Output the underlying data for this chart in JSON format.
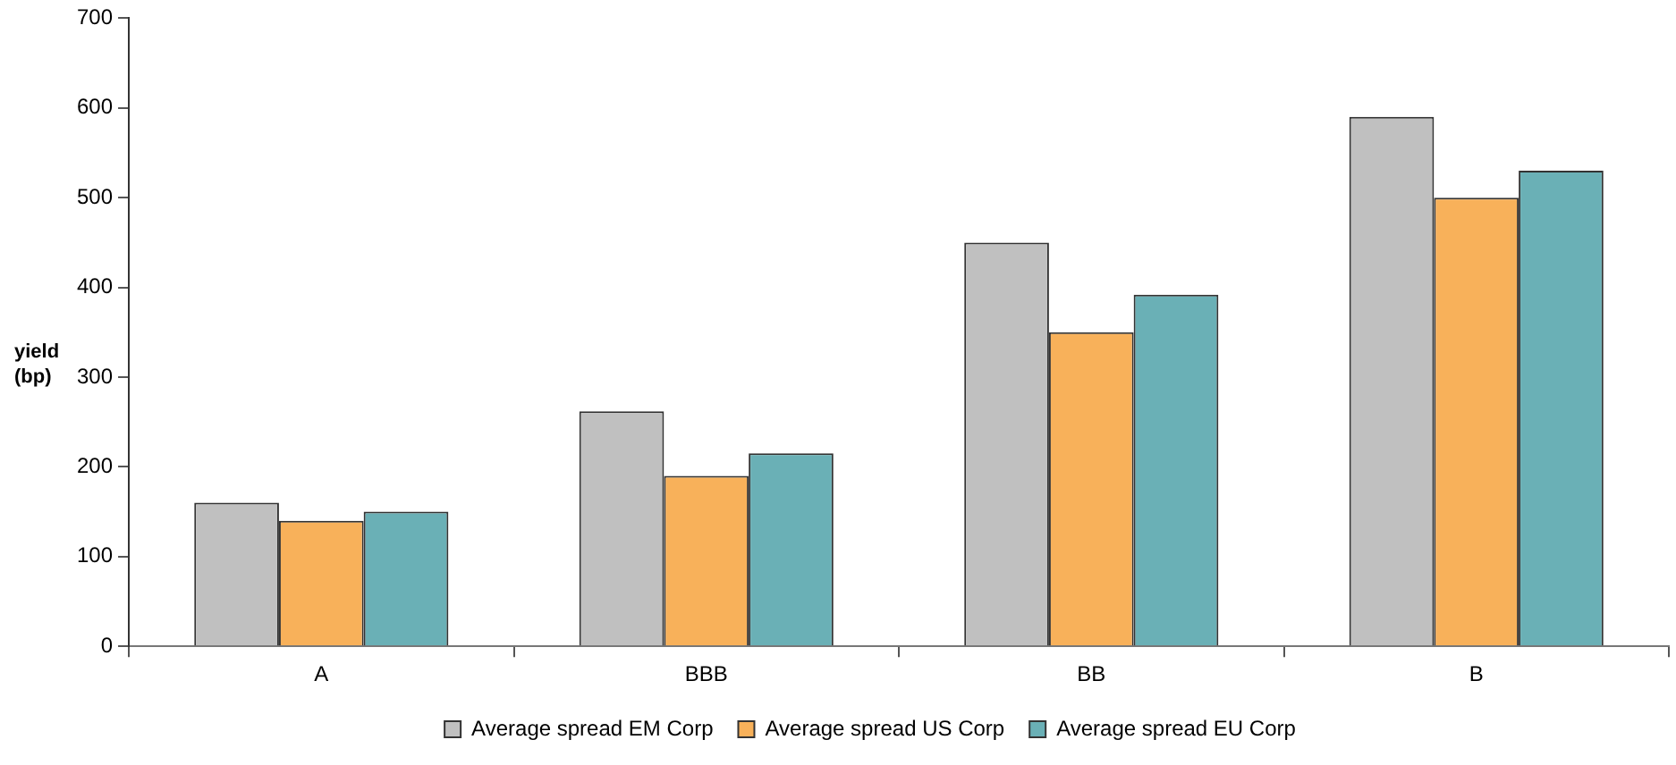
{
  "chart_data": {
    "type": "bar",
    "ylabel": "yield (bp)",
    "categories": [
      "A",
      "BBB",
      "BB",
      "B"
    ],
    "series": [
      {
        "name": "Average spread EM Corp",
        "color": "#c0c0c0",
        "values": [
          160,
          262,
          450,
          590
        ]
      },
      {
        "name": "Average spread US Corp",
        "color": "#f8b15a",
        "values": [
          140,
          190,
          350,
          500
        ]
      },
      {
        "name": "Average spread EU Corp",
        "color": "#6ab0b6",
        "values": [
          150,
          215,
          392,
          530
        ]
      }
    ],
    "ylim": [
      0,
      700
    ],
    "yticks": [
      0,
      100,
      200,
      300,
      400,
      500,
      600,
      700
    ],
    "grid": false,
    "legend": "bottom"
  }
}
